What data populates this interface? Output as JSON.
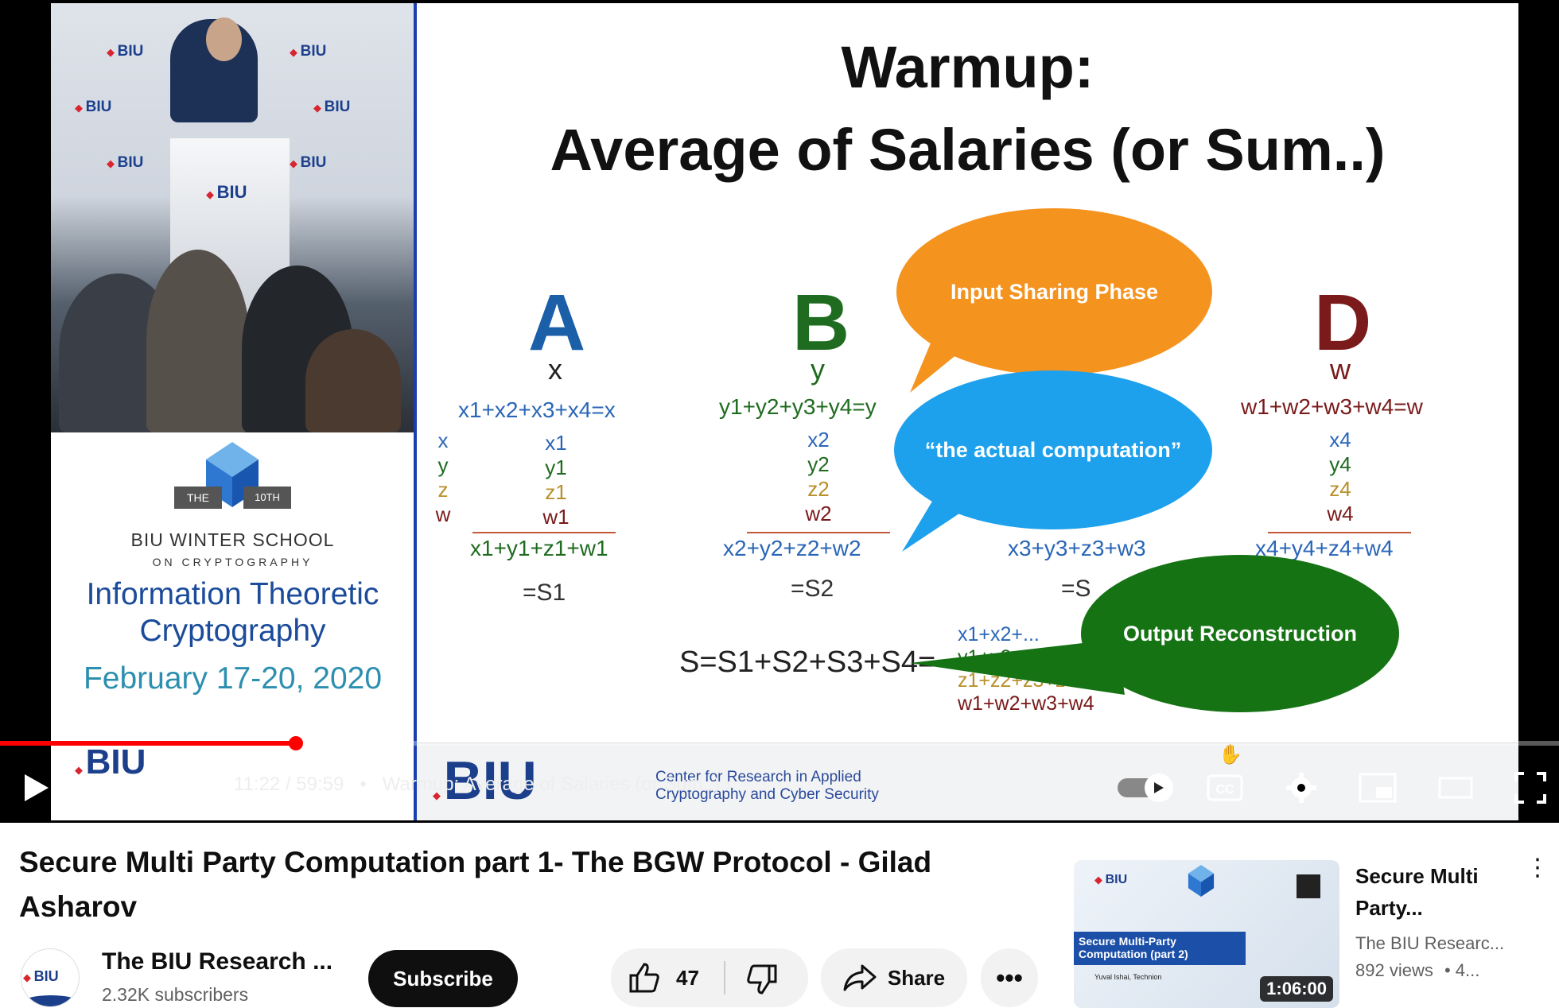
{
  "player": {
    "slide": {
      "title_line1": "Warmup:",
      "title_line2": "Average of Salaries (or Sum..)",
      "party_a": "A",
      "party_b": "B",
      "party_d": "D",
      "var_a": "x",
      "var_b": "y",
      "var_d": "w",
      "eq_a": "x1+x2+x3+x4=x",
      "eq_b": "y1+y2+y3+y4=y",
      "eq_d": "w1+w2+w3+w4=w",
      "col_left": [
        "x",
        "y",
        "z",
        "w"
      ],
      "col_a": [
        "x1",
        "y1",
        "z1",
        "w1"
      ],
      "col_b": [
        "x2",
        "y2",
        "z2",
        "w2"
      ],
      "col_d": [
        "x4",
        "y4",
        "z4",
        "w4"
      ],
      "sum_a": "x1+y1+z1+w1",
      "sum_b": "x2+y2+z2+w2",
      "sum_c": "x3+y3+z3+w3",
      "sum_d": "x4+y4+z4+w4",
      "s_a": "=S1",
      "s_b": "=S2",
      "s_c": "=S",
      "final": "S=S1+S2+S3+S4=",
      "recon": [
        "x1+x2+...",
        "y1+y2+y3...",
        "z1+z2+z3+z4",
        "w1+w2+w3+w4"
      ],
      "bubble_input": "Input Sharing Phase",
      "bubble_compute": "“the actual computation”",
      "bubble_output": "Output Reconstruction",
      "footer_org": "Center for Research in Applied\nCryptography and Cyber Security"
    },
    "poster": {
      "the": "THE",
      "edition": "10TH",
      "school": "BIU WINTER SCHOOL",
      "sub": "ON CRYPTOGRAPHY",
      "topic_line1": "Information Theoretic",
      "topic_line2": "Cryptography",
      "dates": "February 17-20, 2020"
    },
    "biu": "BIU",
    "progress_fraction": 0.19,
    "time_current": "11:22",
    "time_total": "59:59",
    "chapter": "Warmup: Average of Salaries (or Sum..)"
  },
  "video": {
    "title": "Secure Multi Party Computation part 1- The BGW Protocol - Gilad Asharov",
    "channel_name": "The BIU Research ...",
    "subscribers": "2.32K subscribers",
    "subscribe_label": "Subscribe",
    "likes": "47",
    "share_label": "Share"
  },
  "recommended": {
    "thumb_title": "Secure Multi-Party Computation (part 2)",
    "thumb_author": "Yuval Ishai, Technion",
    "duration": "1:06:00",
    "title": "Secure Multi Party...",
    "channel": "The BIU Researc...",
    "views": "892 views",
    "age": "• 4..."
  },
  "colors": {
    "accent_red": "#ff0000",
    "biu_blue": "#1c3f8c"
  }
}
